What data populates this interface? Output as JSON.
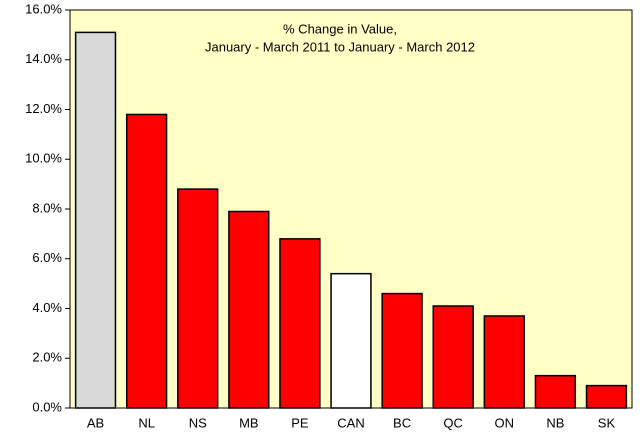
{
  "chart_data": {
    "type": "bar",
    "title": [
      "% Change in Value,",
      "January - March 2011 to January - March  2012"
    ],
    "categories": [
      "AB",
      "NL",
      "NS",
      "MB",
      "PE",
      "CAN",
      "BC",
      "QC",
      "ON",
      "NB",
      "SK"
    ],
    "values": [
      15.1,
      11.8,
      8.8,
      7.9,
      6.8,
      5.4,
      4.6,
      4.1,
      3.7,
      1.3,
      0.9
    ],
    "colors": [
      "#d9d9d9",
      "#ff0000",
      "#ff0000",
      "#ff0000",
      "#ff0000",
      "#ffffff",
      "#ff0000",
      "#ff0000",
      "#ff0000",
      "#ff0000",
      "#ff0000"
    ],
    "ylim": [
      0,
      16
    ],
    "yticks": [
      {
        "value": 0,
        "label": "0.0%"
      },
      {
        "value": 2,
        "label": "2.0%"
      },
      {
        "value": 4,
        "label": "4.0%"
      },
      {
        "value": 6,
        "label": "6.0%"
      },
      {
        "value": 8,
        "label": "8.0%"
      },
      {
        "value": 10,
        "label": "10.0%"
      },
      {
        "value": 12,
        "label": "12.0%"
      },
      {
        "value": 14,
        "label": "14.0%"
      },
      {
        "value": 16,
        "label": "16.0%"
      }
    ],
    "grid": false
  }
}
